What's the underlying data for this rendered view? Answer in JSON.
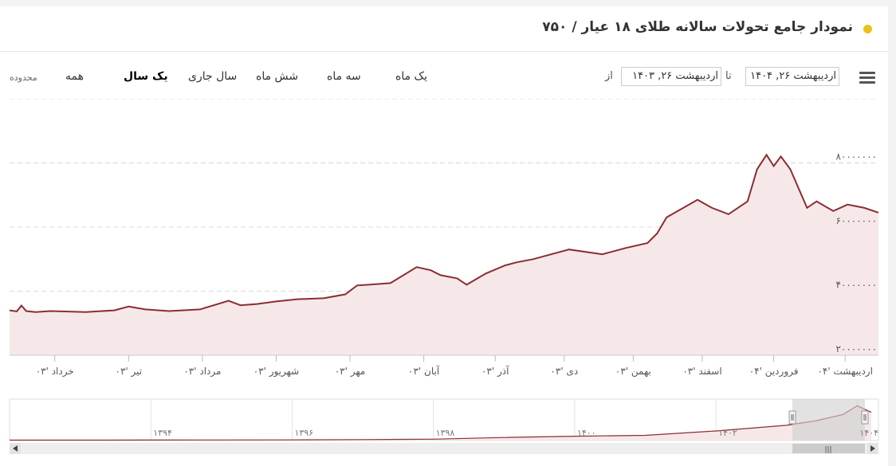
{
  "header": {
    "title": "نمودار جامع تحولات سالانه طلای ۱۸ عیار / ۷۵۰",
    "accent_color": "#e9c31d"
  },
  "toolbar": {
    "range_title": "محدوده",
    "range_buttons": [
      "همه",
      "یک سال",
      "سال جاری",
      "شش ماه",
      "سه ماه",
      "یک ماه"
    ],
    "active_range": "یک سال",
    "from_label": "از",
    "to_label": "تا",
    "from_date": "اردیبهشت ۲۶, ۱۴۰۳",
    "to_date": "اردیبهشت ۲۶, ۱۴۰۴",
    "menu_icon": "hamburger-menu-icon"
  },
  "chart_data": {
    "type": "area",
    "line_color": "#8b2d32",
    "fill_color": "#f6e8e9",
    "ylim": [
      20000000,
      100000000
    ],
    "y_ticks": [
      20000000,
      40000000,
      60000000,
      80000000
    ],
    "y_tick_labels": [
      "۲۰۰۰۰۰۰۰",
      "۴۰۰۰۰۰۰۰",
      "۶۰۰۰۰۰۰۰",
      "۸۰۰۰۰۰۰۰"
    ],
    "x_ticks": [
      "خرداد '۰۳",
      "تیر '۰۳",
      "مرداد '۰۳",
      "شهریور '۰۳",
      "مهر '۰۳",
      "آبان '۰۳",
      "آذر '۰۳",
      "دی '۰۳",
      "بهمن '۰۳",
      "اسفند '۰۳",
      "فروردین '۰۴",
      "اردیبهشت '۰۴"
    ],
    "x_tick_positions": [
      19,
      50,
      81,
      112,
      143,
      174,
      204,
      233,
      262,
      291,
      321,
      351
    ],
    "xlim": [
      0,
      365
    ],
    "grid": true,
    "series": [
      {
        "x": [
          0,
          3,
          5,
          7,
          11,
          17,
          22,
          32,
          44,
          50,
          57,
          67,
          80,
          92,
          97,
          104,
          112,
          121,
          132,
          141,
          146,
          151,
          160,
          171,
          177,
          181,
          188,
          192,
          200,
          208,
          213,
          220,
          235,
          249,
          259,
          268,
          272,
          276,
          289,
          295,
          302,
          310,
          314,
          318,
          321,
          324,
          328,
          335,
          339,
          346,
          352,
          359,
          365
        ],
        "values": [
          34000000,
          33700000,
          35500000,
          33800000,
          33500000,
          33800000,
          33700000,
          33500000,
          34000000,
          35200000,
          34300000,
          33800000,
          34300000,
          37000000,
          35600000,
          36000000,
          36800000,
          37500000,
          37800000,
          39000000,
          41800000,
          42000000,
          42500000,
          47500000,
          46500000,
          45000000,
          44000000,
          42000000,
          45500000,
          48000000,
          49000000,
          50000000,
          53000000,
          51500000,
          53500000,
          55000000,
          58000000,
          63000000,
          68500000,
          66000000,
          64000000,
          68000000,
          78000000,
          82500000,
          79000000,
          82000000,
          78000000,
          66000000,
          68000000,
          65000000,
          67000000,
          66000000,
          64500000
        ]
      }
    ],
    "navigator": {
      "x_tick_labels": [
        "۱۳۹۴",
        "۱۳۹۶",
        "۱۳۹۸",
        "۱۴۰۰",
        "۱۴۰۲",
        "۱۴۰۴"
      ],
      "series": [
        {
          "x": [
            1392,
            1393,
            1394,
            1395,
            1396,
            1397,
            1398,
            1399,
            1400,
            1401,
            1402,
            1403,
            1403.4,
            1403.8,
            1404,
            1404.2
          ],
          "values": [
            1,
            1,
            1.1,
            1.2,
            1.4,
            2.2,
            3.2,
            7,
            10,
            12,
            22,
            35,
            45,
            60,
            80,
            65
          ]
        }
      ],
      "xlim": [
        1392,
        1404.3
      ]
    }
  }
}
